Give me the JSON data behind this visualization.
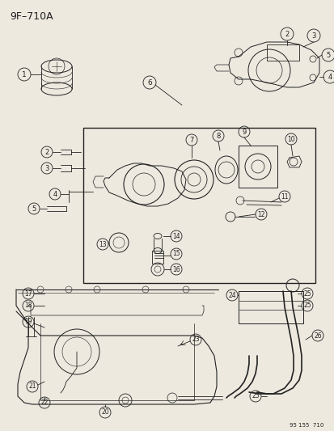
{
  "title": "9F–710A",
  "footer": "95 155  710",
  "bg_color": "#ede9df",
  "fig_width": 4.14,
  "fig_height": 5.33,
  "dpi": 100
}
